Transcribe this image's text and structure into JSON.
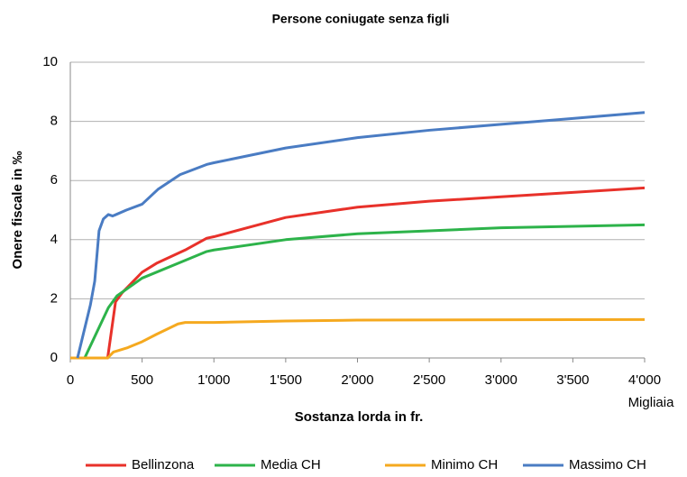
{
  "chart_data": {
    "type": "line",
    "title": "Persone coniugate senza figli",
    "xlabel": "Sostanza lorda in fr.",
    "ylabel": "Onere fiscale in ‰",
    "annotation": "Migliaia",
    "xlim": [
      0,
      4000
    ],
    "xticks": [
      0,
      500,
      {
        "value": 1000,
        "label": "1'000"
      },
      {
        "value": 1500,
        "label": "1'500"
      },
      {
        "value": 2000,
        "label": "2'000"
      },
      {
        "value": 2500,
        "label": "2'500"
      },
      {
        "value": 3000,
        "label": "3'000"
      },
      {
        "value": 3500,
        "label": "3'500"
      },
      {
        "value": 4000,
        "label": "4'000"
      }
    ],
    "ylim": [
      0,
      10
    ],
    "yticks": [
      0,
      2,
      4,
      6,
      8,
      10
    ],
    "grid": true,
    "legend": "bottom",
    "series": [
      {
        "name": "Bellinzona",
        "color": "#e8312a",
        "x": [
          50,
          260,
          315,
          360,
          500,
          600,
          800,
          950,
          1000,
          1500,
          2000,
          2500,
          3000,
          3500,
          4000
        ],
        "values": [
          0,
          0,
          1.9,
          2.2,
          2.9,
          3.2,
          3.65,
          4.05,
          4.1,
          4.75,
          5.1,
          5.3,
          5.45,
          5.6,
          5.75
        ]
      },
      {
        "name": "Media CH",
        "color": "#2db34a",
        "x": [
          30,
          100,
          265,
          325,
          500,
          800,
          950,
          1000,
          1500,
          2000,
          2500,
          3000,
          3500,
          4000
        ],
        "values": [
          0,
          0,
          1.7,
          2.1,
          2.7,
          3.3,
          3.6,
          3.65,
          4.0,
          4.2,
          4.3,
          4.4,
          4.45,
          4.5
        ]
      },
      {
        "name": "Minimo CH",
        "color": "#f5a91f",
        "x": [
          0,
          260,
          300,
          400,
          500,
          600,
          750,
          800,
          1000,
          1500,
          2000,
          4000
        ],
        "values": [
          0,
          0,
          0.2,
          0.35,
          0.55,
          0.8,
          1.15,
          1.2,
          1.2,
          1.25,
          1.28,
          1.3
        ]
      },
      {
        "name": "Massimo CH",
        "color": "#4a7cc3",
        "x": [
          50,
          75,
          140,
          170,
          200,
          230,
          265,
          295,
          390,
          500,
          610,
          765,
          955,
          1000,
          1500,
          2000,
          2500,
          3000,
          3500,
          4000
        ],
        "values": [
          0,
          0.5,
          1.8,
          2.6,
          4.3,
          4.7,
          4.85,
          4.8,
          5.0,
          5.2,
          5.7,
          6.2,
          6.55,
          6.6,
          7.1,
          7.45,
          7.7,
          7.9,
          8.1,
          8.3
        ]
      }
    ]
  }
}
